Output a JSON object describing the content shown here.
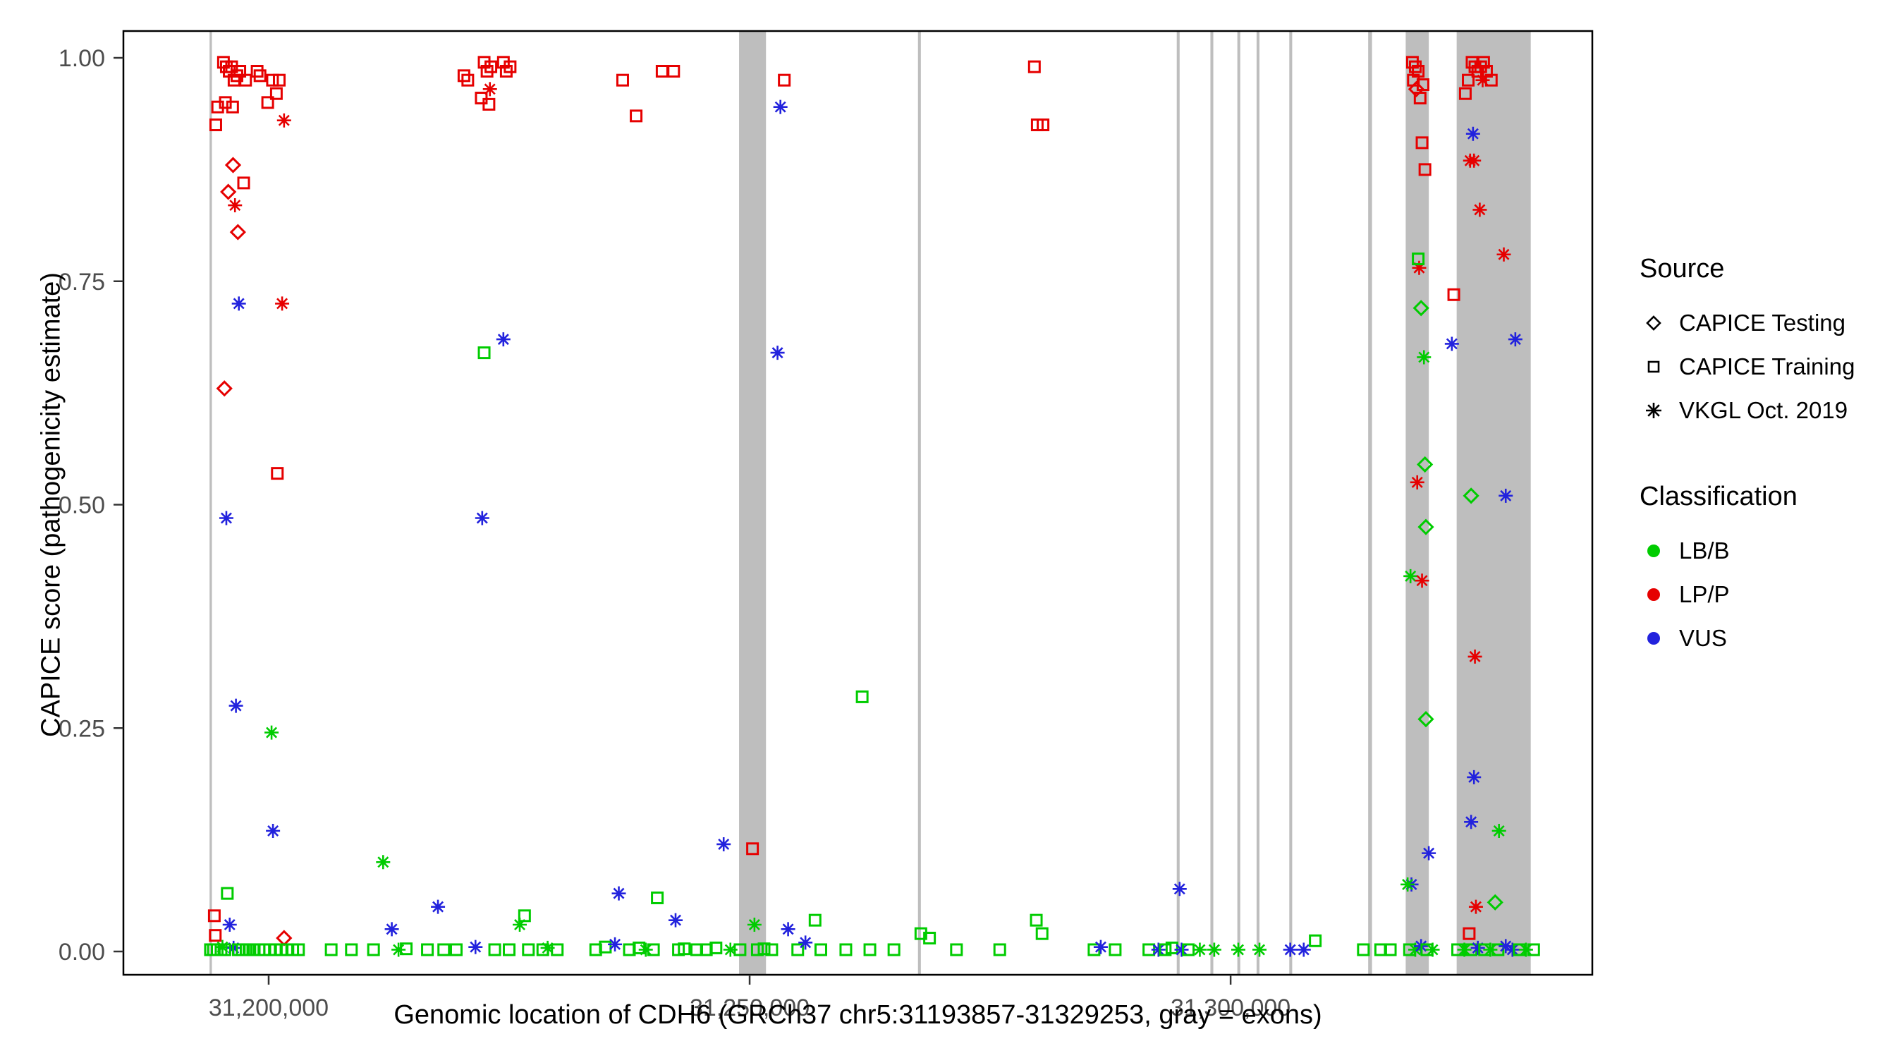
{
  "figure": {
    "x_axis_title": "Genomic location of CDH6 (GRCh37 chr5:31193857-31329253, gray = exons)",
    "y_axis_title": "CAPICE score (pathogenicity estimate)"
  },
  "legend": {
    "source": {
      "title": "Source",
      "items": [
        {
          "label": "CAPICE Testing",
          "shape": "diamond"
        },
        {
          "label": "CAPICE Training",
          "shape": "square"
        },
        {
          "label": "VKGL Oct. 2019",
          "shape": "asterisk"
        }
      ]
    },
    "classification": {
      "title": "Classification",
      "items": [
        {
          "label": "LB/B",
          "color": "#00CC00",
          "code": "B"
        },
        {
          "label": "LP/P",
          "color": "#E60000",
          "code": "P"
        },
        {
          "label": "VUS",
          "color": "#2222DD",
          "code": "U"
        }
      ]
    }
  },
  "chart_data": {
    "type": "scatter",
    "title": "",
    "xlabel": "Genomic location of CDH6 (GRCh37 chr5:31193857-31329253, gray = exons)",
    "ylabel": "CAPICE score (pathogenicity estimate)",
    "x_domain": [
      31184900,
      31337600
    ],
    "y_domain": [
      0,
      1
    ],
    "x_ticks": [
      {
        "value": 31200000,
        "label": "31,200,000"
      },
      {
        "value": 31250000,
        "label": "31,250,000"
      },
      {
        "value": 31300000,
        "label": "31,300,000"
      }
    ],
    "y_ticks": [
      {
        "value": 0.0,
        "label": "0.00"
      },
      {
        "value": 0.25,
        "label": "0.25"
      },
      {
        "value": 0.5,
        "label": "0.50"
      },
      {
        "value": 0.75,
        "label": "0.75"
      },
      {
        "value": 1.0,
        "label": "1.00"
      }
    ],
    "grid": false,
    "legend_position": "right",
    "exon_color": "#BEBEBE",
    "exons": [
      [
        31193857,
        31194100
      ],
      [
        31248900,
        31251700
      ],
      [
        31267500,
        31267800
      ],
      [
        31294400,
        31294700
      ],
      [
        31297900,
        31298200
      ],
      [
        31300700,
        31301000
      ],
      [
        31302700,
        31303000
      ],
      [
        31306100,
        31306400
      ],
      [
        31314300,
        31314700
      ],
      [
        31318200,
        31320600
      ],
      [
        31323500,
        31331200
      ]
    ],
    "shape_by": "Source",
    "color_by": "Classification",
    "source_codes": {
      "T": "CAPICE Testing",
      "R": "CAPICE Training",
      "V": "VKGL Oct. 2019"
    },
    "source_shapes": {
      "T": "diamond",
      "R": "square",
      "V": "asterisk"
    },
    "class_codes": {
      "B": "LB/B",
      "P": "LP/P",
      "U": "VUS"
    },
    "class_colors": {
      "B": "#00CC00",
      "P": "#E60000",
      "U": "#2222DD"
    },
    "point_columns": [
      "genomic_position",
      "capice_score",
      "source",
      "classification"
    ],
    "points": [
      [
        31195300,
        0.995,
        "R",
        "P"
      ],
      [
        31195600,
        0.99,
        "R",
        "P"
      ],
      [
        31195900,
        0.985,
        "R",
        "P"
      ],
      [
        31196150,
        0.99,
        "R",
        "P"
      ],
      [
        31196400,
        0.975,
        "R",
        "P"
      ],
      [
        31196700,
        0.98,
        "R",
        "P"
      ],
      [
        31197000,
        0.985,
        "R",
        "P"
      ],
      [
        31197600,
        0.975,
        "R",
        "P"
      ],
      [
        31198800,
        0.985,
        "R",
        "P"
      ],
      [
        31199100,
        0.98,
        "R",
        "P"
      ],
      [
        31200400,
        0.975,
        "R",
        "P"
      ],
      [
        31200800,
        0.96,
        "R",
        "P"
      ],
      [
        31201100,
        0.975,
        "R",
        "P"
      ],
      [
        31194700,
        0.945,
        "R",
        "P"
      ],
      [
        31195500,
        0.95,
        "R",
        "P"
      ],
      [
        31196250,
        0.945,
        "R",
        "P"
      ],
      [
        31199900,
        0.95,
        "R",
        "P"
      ],
      [
        31194500,
        0.925,
        "R",
        "P"
      ],
      [
        31201600,
        0.93,
        "V",
        "P"
      ],
      [
        31196300,
        0.88,
        "T",
        "P"
      ],
      [
        31197400,
        0.86,
        "R",
        "P"
      ],
      [
        31195800,
        0.85,
        "T",
        "P"
      ],
      [
        31196500,
        0.835,
        "V",
        "P"
      ],
      [
        31196800,
        0.805,
        "T",
        "P"
      ],
      [
        31195400,
        0.63,
        "T",
        "P"
      ],
      [
        31201400,
        0.725,
        "V",
        "P"
      ],
      [
        31196900,
        0.725,
        "V",
        "U"
      ],
      [
        31200900,
        0.535,
        "R",
        "P"
      ],
      [
        31195600,
        0.485,
        "V",
        "U"
      ],
      [
        31196600,
        0.275,
        "V",
        "U"
      ],
      [
        31200300,
        0.245,
        "V",
        "B"
      ],
      [
        31200450,
        0.135,
        "V",
        "U"
      ],
      [
        31195700,
        0.065,
        "R",
        "B"
      ],
      [
        31195950,
        0.03,
        "V",
        "U"
      ],
      [
        31194350,
        0.04,
        "R",
        "P"
      ],
      [
        31194450,
        0.018,
        "R",
        "P"
      ],
      [
        31201600,
        0.015,
        "T",
        "P"
      ],
      [
        31195200,
        0.005,
        "V",
        "B"
      ],
      [
        31196350,
        0.004,
        "V",
        "U"
      ],
      [
        31193950,
        0.002,
        "R",
        "B"
      ],
      [
        31194250,
        0.002,
        "R",
        "B"
      ],
      [
        31194650,
        0.002,
        "R",
        "B"
      ],
      [
        31195050,
        0.002,
        "R",
        "B"
      ],
      [
        31195450,
        0.002,
        "R",
        "B"
      ],
      [
        31196850,
        0.002,
        "R",
        "B"
      ],
      [
        31197250,
        0.002,
        "R",
        "B"
      ],
      [
        31197650,
        0.002,
        "R",
        "B"
      ],
      [
        31198050,
        0.002,
        "R",
        "B"
      ],
      [
        31198500,
        0.002,
        "R",
        "B"
      ],
      [
        31199000,
        0.002,
        "R",
        "B"
      ],
      [
        31199500,
        0.002,
        "R",
        "B"
      ],
      [
        31200100,
        0.002,
        "R",
        "B"
      ],
      [
        31200700,
        0.002,
        "R",
        "B"
      ],
      [
        31201300,
        0.002,
        "R",
        "B"
      ],
      [
        31201900,
        0.002,
        "R",
        "B"
      ],
      [
        31202500,
        0.002,
        "R",
        "B"
      ],
      [
        31203100,
        0.002,
        "R",
        "B"
      ],
      [
        31206500,
        0.002,
        "R",
        "B"
      ],
      [
        31208600,
        0.002,
        "R",
        "B"
      ],
      [
        31210900,
        0.002,
        "R",
        "B"
      ],
      [
        31211900,
        0.1,
        "V",
        "B"
      ],
      [
        31212800,
        0.025,
        "V",
        "U"
      ],
      [
        31213500,
        0.002,
        "V",
        "B"
      ],
      [
        31214300,
        0.003,
        "R",
        "B"
      ],
      [
        31220300,
        0.98,
        "R",
        "P"
      ],
      [
        31220700,
        0.975,
        "R",
        "P"
      ],
      [
        31222400,
        0.995,
        "R",
        "P"
      ],
      [
        31222700,
        0.985,
        "R",
        "P"
      ],
      [
        31223100,
        0.99,
        "R",
        "P"
      ],
      [
        31224400,
        0.995,
        "R",
        "P"
      ],
      [
        31224700,
        0.985,
        "R",
        "P"
      ],
      [
        31225100,
        0.99,
        "R",
        "P"
      ],
      [
        31223000,
        0.965,
        "V",
        "P"
      ],
      [
        31222100,
        0.955,
        "R",
        "P"
      ],
      [
        31222900,
        0.948,
        "R",
        "P"
      ],
      [
        31222400,
        0.67,
        "R",
        "B"
      ],
      [
        31224400,
        0.685,
        "V",
        "U"
      ],
      [
        31222200,
        0.485,
        "V",
        "U"
      ],
      [
        31217600,
        0.05,
        "V",
        "U"
      ],
      [
        31226600,
        0.04,
        "R",
        "B"
      ],
      [
        31226100,
        0.03,
        "V",
        "B"
      ],
      [
        31221500,
        0.005,
        "V",
        "U"
      ],
      [
        31229000,
        0.004,
        "V",
        "B"
      ],
      [
        31216500,
        0.002,
        "R",
        "B"
      ],
      [
        31218200,
        0.002,
        "R",
        "B"
      ],
      [
        31219500,
        0.002,
        "R",
        "B"
      ],
      [
        31223500,
        0.002,
        "R",
        "B"
      ],
      [
        31225000,
        0.002,
        "R",
        "B"
      ],
      [
        31227000,
        0.002,
        "R",
        "B"
      ],
      [
        31228500,
        0.002,
        "R",
        "B"
      ],
      [
        31230000,
        0.002,
        "R",
        "B"
      ],
      [
        31236800,
        0.975,
        "R",
        "P"
      ],
      [
        31238200,
        0.935,
        "R",
        "P"
      ],
      [
        31240900,
        0.985,
        "R",
        "P"
      ],
      [
        31242100,
        0.985,
        "R",
        "P"
      ],
      [
        31236400,
        0.065,
        "V",
        "U"
      ],
      [
        31240400,
        0.06,
        "R",
        "B"
      ],
      [
        31242300,
        0.035,
        "V",
        "U"
      ],
      [
        31234000,
        0.002,
        "R",
        "B"
      ],
      [
        31235000,
        0.005,
        "R",
        "B"
      ],
      [
        31236000,
        0.008,
        "V",
        "U"
      ],
      [
        31237500,
        0.002,
        "R",
        "B"
      ],
      [
        31238500,
        0.004,
        "R",
        "B"
      ],
      [
        31239200,
        0.002,
        "V",
        "B"
      ],
      [
        31240000,
        0.002,
        "R",
        "B"
      ],
      [
        31242600,
        0.002,
        "R",
        "B"
      ],
      [
        31243200,
        0.003,
        "R",
        "B"
      ],
      [
        31253600,
        0.975,
        "R",
        "P"
      ],
      [
        31253200,
        0.945,
        "V",
        "U"
      ],
      [
        31252900,
        0.67,
        "V",
        "U"
      ],
      [
        31250300,
        0.115,
        "R",
        "P"
      ],
      [
        31250500,
        0.03,
        "V",
        "B"
      ],
      [
        31247300,
        0.12,
        "V",
        "U"
      ],
      [
        31244500,
        0.002,
        "R",
        "B"
      ],
      [
        31245500,
        0.002,
        "R",
        "B"
      ],
      [
        31246500,
        0.004,
        "R",
        "B"
      ],
      [
        31248000,
        0.002,
        "V",
        "B"
      ],
      [
        31249000,
        0.002,
        "R",
        "B"
      ],
      [
        31250800,
        0.002,
        "R",
        "B"
      ],
      [
        31251500,
        0.003,
        "R",
        "B"
      ],
      [
        31252300,
        0.002,
        "R",
        "B"
      ],
      [
        31254000,
        0.025,
        "V",
        "U"
      ],
      [
        31255000,
        0.002,
        "R",
        "B"
      ],
      [
        31255800,
        0.01,
        "V",
        "U"
      ],
      [
        31256800,
        0.035,
        "R",
        "B"
      ],
      [
        31257400,
        0.002,
        "R",
        "B"
      ],
      [
        31261700,
        0.285,
        "R",
        "B"
      ],
      [
        31260000,
        0.002,
        "R",
        "B"
      ],
      [
        31262500,
        0.002,
        "R",
        "B"
      ],
      [
        31265000,
        0.002,
        "R",
        "B"
      ],
      [
        31267800,
        0.02,
        "R",
        "B"
      ],
      [
        31268700,
        0.015,
        "R",
        "B"
      ],
      [
        31271500,
        0.002,
        "R",
        "B"
      ],
      [
        31279600,
        0.99,
        "R",
        "P"
      ],
      [
        31279900,
        0.925,
        "R",
        "P"
      ],
      [
        31280500,
        0.925,
        "R",
        "P"
      ],
      [
        31279800,
        0.035,
        "R",
        "B"
      ],
      [
        31280400,
        0.02,
        "R",
        "B"
      ],
      [
        31276000,
        0.002,
        "R",
        "B"
      ],
      [
        31285800,
        0.002,
        "R",
        "B"
      ],
      [
        31286500,
        0.005,
        "V",
        "U"
      ],
      [
        31288000,
        0.002,
        "R",
        "B"
      ],
      [
        31291500,
        0.002,
        "R",
        "B"
      ],
      [
        31292500,
        0.002,
        "V",
        "U"
      ],
      [
        31293200,
        0.002,
        "R",
        "B"
      ],
      [
        31293900,
        0.004,
        "R",
        "B"
      ],
      [
        31294700,
        0.07,
        "V",
        "U"
      ],
      [
        31294900,
        0.002,
        "V",
        "U"
      ],
      [
        31295600,
        0.002,
        "R",
        "B"
      ],
      [
        31296800,
        0.002,
        "V",
        "B"
      ],
      [
        31298300,
        0.002,
        "V",
        "B"
      ],
      [
        31300800,
        0.002,
        "V",
        "B"
      ],
      [
        31303000,
        0.002,
        "V",
        "B"
      ],
      [
        31306200,
        0.002,
        "V",
        "U"
      ],
      [
        31307600,
        0.002,
        "V",
        "U"
      ],
      [
        31308800,
        0.012,
        "R",
        "B"
      ],
      [
        31313800,
        0.002,
        "R",
        "B"
      ],
      [
        31315600,
        0.002,
        "R",
        "B"
      ],
      [
        31316600,
        0.002,
        "R",
        "B"
      ],
      [
        31318900,
        0.995,
        "R",
        "P"
      ],
      [
        31319200,
        0.99,
        "R",
        "P"
      ],
      [
        31319000,
        0.975,
        "R",
        "P"
      ],
      [
        31319500,
        0.985,
        "R",
        "P"
      ],
      [
        31319300,
        0.965,
        "T",
        "P"
      ],
      [
        31319700,
        0.955,
        "R",
        "P"
      ],
      [
        31320000,
        0.97,
        "R",
        "P"
      ],
      [
        31319900,
        0.905,
        "R",
        "P"
      ],
      [
        31320200,
        0.875,
        "R",
        "P"
      ],
      [
        31319600,
        0.765,
        "V",
        "P"
      ],
      [
        31319500,
        0.775,
        "R",
        "B"
      ],
      [
        31319800,
        0.72,
        "T",
        "B"
      ],
      [
        31320100,
        0.665,
        "V",
        "B"
      ],
      [
        31319400,
        0.525,
        "V",
        "P"
      ],
      [
        31320200,
        0.545,
        "T",
        "B"
      ],
      [
        31320300,
        0.475,
        "T",
        "B"
      ],
      [
        31318700,
        0.42,
        "V",
        "B"
      ],
      [
        31319900,
        0.415,
        "V",
        "P"
      ],
      [
        31320300,
        0.26,
        "T",
        "B"
      ],
      [
        31320600,
        0.11,
        "V",
        "U"
      ],
      [
        31318800,
        0.075,
        "V",
        "U"
      ],
      [
        31318400,
        0.075,
        "V",
        "B"
      ],
      [
        31318600,
        0.002,
        "R",
        "B"
      ],
      [
        31319200,
        0.002,
        "V",
        "B"
      ],
      [
        31319800,
        0.006,
        "V",
        "U"
      ],
      [
        31320400,
        0.002,
        "R",
        "B"
      ],
      [
        31321000,
        0.002,
        "V",
        "B"
      ],
      [
        31325100,
        0.995,
        "R",
        "P"
      ],
      [
        31325400,
        0.99,
        "R",
        "P"
      ],
      [
        31325700,
        0.985,
        "R",
        "P"
      ],
      [
        31326000,
        0.99,
        "R",
        "P"
      ],
      [
        31326300,
        0.995,
        "R",
        "P"
      ],
      [
        31326600,
        0.985,
        "R",
        "P"
      ],
      [
        31326200,
        0.975,
        "V",
        "P"
      ],
      [
        31324700,
        0.975,
        "R",
        "P"
      ],
      [
        31327100,
        0.975,
        "R",
        "P"
      ],
      [
        31324400,
        0.96,
        "R",
        "P"
      ],
      [
        31325200,
        0.915,
        "V",
        "U"
      ],
      [
        31324900,
        0.885,
        "V",
        "P"
      ],
      [
        31325300,
        0.885,
        "V",
        "P"
      ],
      [
        31325900,
        0.83,
        "V",
        "P"
      ],
      [
        31328400,
        0.78,
        "V",
        "P"
      ],
      [
        31323200,
        0.735,
        "R",
        "P"
      ],
      [
        31329600,
        0.685,
        "V",
        "U"
      ],
      [
        31323000,
        0.68,
        "V",
        "U"
      ],
      [
        31325000,
        0.51,
        "T",
        "B"
      ],
      [
        31328600,
        0.51,
        "V",
        "U"
      ],
      [
        31325400,
        0.33,
        "V",
        "P"
      ],
      [
        31325300,
        0.195,
        "V",
        "U"
      ],
      [
        31325000,
        0.145,
        "V",
        "U"
      ],
      [
        31327900,
        0.135,
        "V",
        "B"
      ],
      [
        31325500,
        0.05,
        "V",
        "P"
      ],
      [
        31327500,
        0.055,
        "T",
        "B"
      ],
      [
        31324800,
        0.02,
        "R",
        "P"
      ],
      [
        31323600,
        0.002,
        "R",
        "B"
      ],
      [
        31324300,
        0.002,
        "V",
        "B"
      ],
      [
        31325000,
        0.002,
        "R",
        "B"
      ],
      [
        31325700,
        0.004,
        "V",
        "U"
      ],
      [
        31326400,
        0.002,
        "R",
        "B"
      ],
      [
        31327000,
        0.002,
        "V",
        "B"
      ],
      [
        31327800,
        0.002,
        "R",
        "B"
      ],
      [
        31328600,
        0.006,
        "V",
        "U"
      ],
      [
        31329300,
        0.002,
        "V",
        "U"
      ],
      [
        31330000,
        0.002,
        "R",
        "B"
      ],
      [
        31330700,
        0.002,
        "V",
        "B"
      ],
      [
        31331500,
        0.002,
        "R",
        "B"
      ]
    ]
  }
}
